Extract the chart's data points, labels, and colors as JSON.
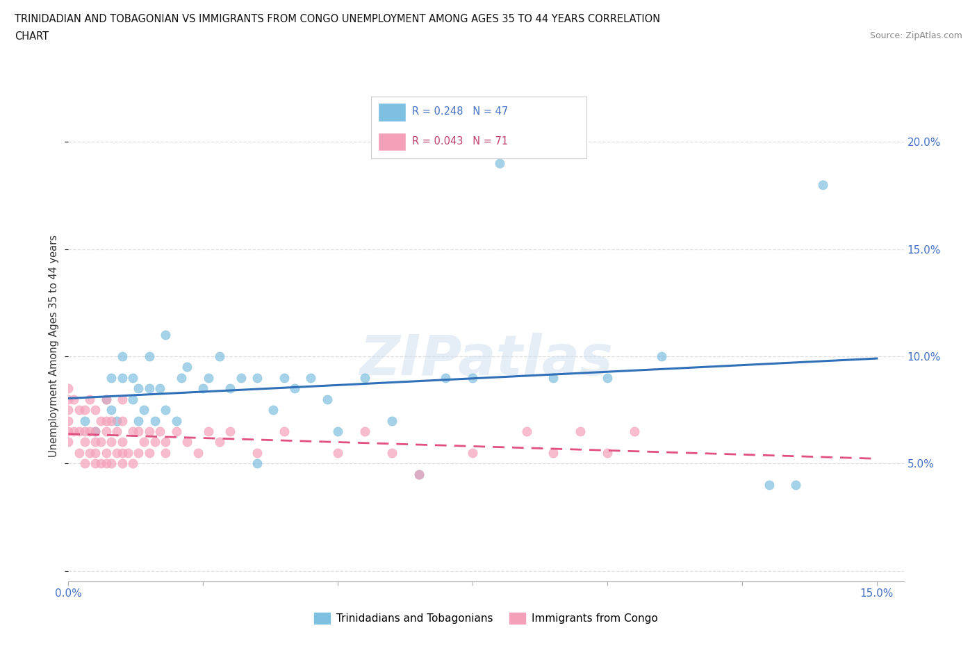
{
  "title_line1": "TRINIDADIAN AND TOBAGONIAN VS IMMIGRANTS FROM CONGO UNEMPLOYMENT AMONG AGES 35 TO 44 YEARS CORRELATION",
  "title_line2": "CHART",
  "source_text": "Source: ZipAtlas.com",
  "ylabel": "Unemployment Among Ages 35 to 44 years",
  "xlim": [
    0.0,
    0.155
  ],
  "ylim": [
    -0.005,
    0.215
  ],
  "xticks": [
    0.0,
    0.025,
    0.05,
    0.075,
    0.1,
    0.125,
    0.15
  ],
  "yticks": [
    0.0,
    0.05,
    0.1,
    0.15,
    0.2
  ],
  "blue_R": 0.248,
  "blue_N": 47,
  "pink_R": 0.043,
  "pink_N": 71,
  "blue_color": "#7fbfdf",
  "pink_color": "#f4a0b8",
  "blue_line_color": "#3070b8",
  "pink_line_color": "#e05080",
  "watermark": "ZIPatlas",
  "legend_label_blue": "Trinidadians and Tobagonians",
  "legend_label_pink": "Immigrants from Congo",
  "blue_scatter_x": [
    0.003,
    0.005,
    0.007,
    0.008,
    0.008,
    0.009,
    0.01,
    0.01,
    0.012,
    0.012,
    0.013,
    0.013,
    0.014,
    0.015,
    0.015,
    0.016,
    0.017,
    0.018,
    0.018,
    0.02,
    0.021,
    0.022,
    0.025,
    0.026,
    0.028,
    0.03,
    0.032,
    0.035,
    0.035,
    0.038,
    0.04,
    0.042,
    0.045,
    0.048,
    0.05,
    0.055,
    0.06,
    0.065,
    0.07,
    0.075,
    0.08,
    0.09,
    0.1,
    0.11,
    0.13,
    0.135,
    0.14
  ],
  "blue_scatter_y": [
    0.07,
    0.065,
    0.08,
    0.075,
    0.09,
    0.07,
    0.09,
    0.1,
    0.08,
    0.09,
    0.07,
    0.085,
    0.075,
    0.085,
    0.1,
    0.07,
    0.085,
    0.075,
    0.11,
    0.07,
    0.09,
    0.095,
    0.085,
    0.09,
    0.1,
    0.085,
    0.09,
    0.05,
    0.09,
    0.075,
    0.09,
    0.085,
    0.09,
    0.08,
    0.065,
    0.09,
    0.07,
    0.045,
    0.09,
    0.09,
    0.19,
    0.09,
    0.09,
    0.1,
    0.04,
    0.04,
    0.18
  ],
  "pink_scatter_x": [
    0.0,
    0.0,
    0.0,
    0.0,
    0.0,
    0.0,
    0.001,
    0.001,
    0.002,
    0.002,
    0.002,
    0.003,
    0.003,
    0.003,
    0.003,
    0.004,
    0.004,
    0.004,
    0.005,
    0.005,
    0.005,
    0.005,
    0.005,
    0.006,
    0.006,
    0.006,
    0.007,
    0.007,
    0.007,
    0.007,
    0.007,
    0.008,
    0.008,
    0.008,
    0.009,
    0.009,
    0.01,
    0.01,
    0.01,
    0.01,
    0.01,
    0.011,
    0.012,
    0.012,
    0.013,
    0.013,
    0.014,
    0.015,
    0.015,
    0.016,
    0.017,
    0.018,
    0.018,
    0.02,
    0.022,
    0.024,
    0.026,
    0.028,
    0.03,
    0.035,
    0.04,
    0.05,
    0.055,
    0.06,
    0.065,
    0.075,
    0.085,
    0.09,
    0.095,
    0.1,
    0.105
  ],
  "pink_scatter_y": [
    0.06,
    0.065,
    0.07,
    0.075,
    0.08,
    0.085,
    0.065,
    0.08,
    0.055,
    0.065,
    0.075,
    0.05,
    0.06,
    0.065,
    0.075,
    0.055,
    0.065,
    0.08,
    0.05,
    0.055,
    0.06,
    0.065,
    0.075,
    0.05,
    0.06,
    0.07,
    0.05,
    0.055,
    0.065,
    0.07,
    0.08,
    0.05,
    0.06,
    0.07,
    0.055,
    0.065,
    0.05,
    0.055,
    0.06,
    0.07,
    0.08,
    0.055,
    0.05,
    0.065,
    0.055,
    0.065,
    0.06,
    0.055,
    0.065,
    0.06,
    0.065,
    0.055,
    0.06,
    0.065,
    0.06,
    0.055,
    0.065,
    0.06,
    0.065,
    0.055,
    0.065,
    0.055,
    0.065,
    0.055,
    0.045,
    0.055,
    0.065,
    0.055,
    0.065,
    0.055,
    0.065
  ],
  "grid_color": "#dddddd",
  "background_color": "#ffffff"
}
